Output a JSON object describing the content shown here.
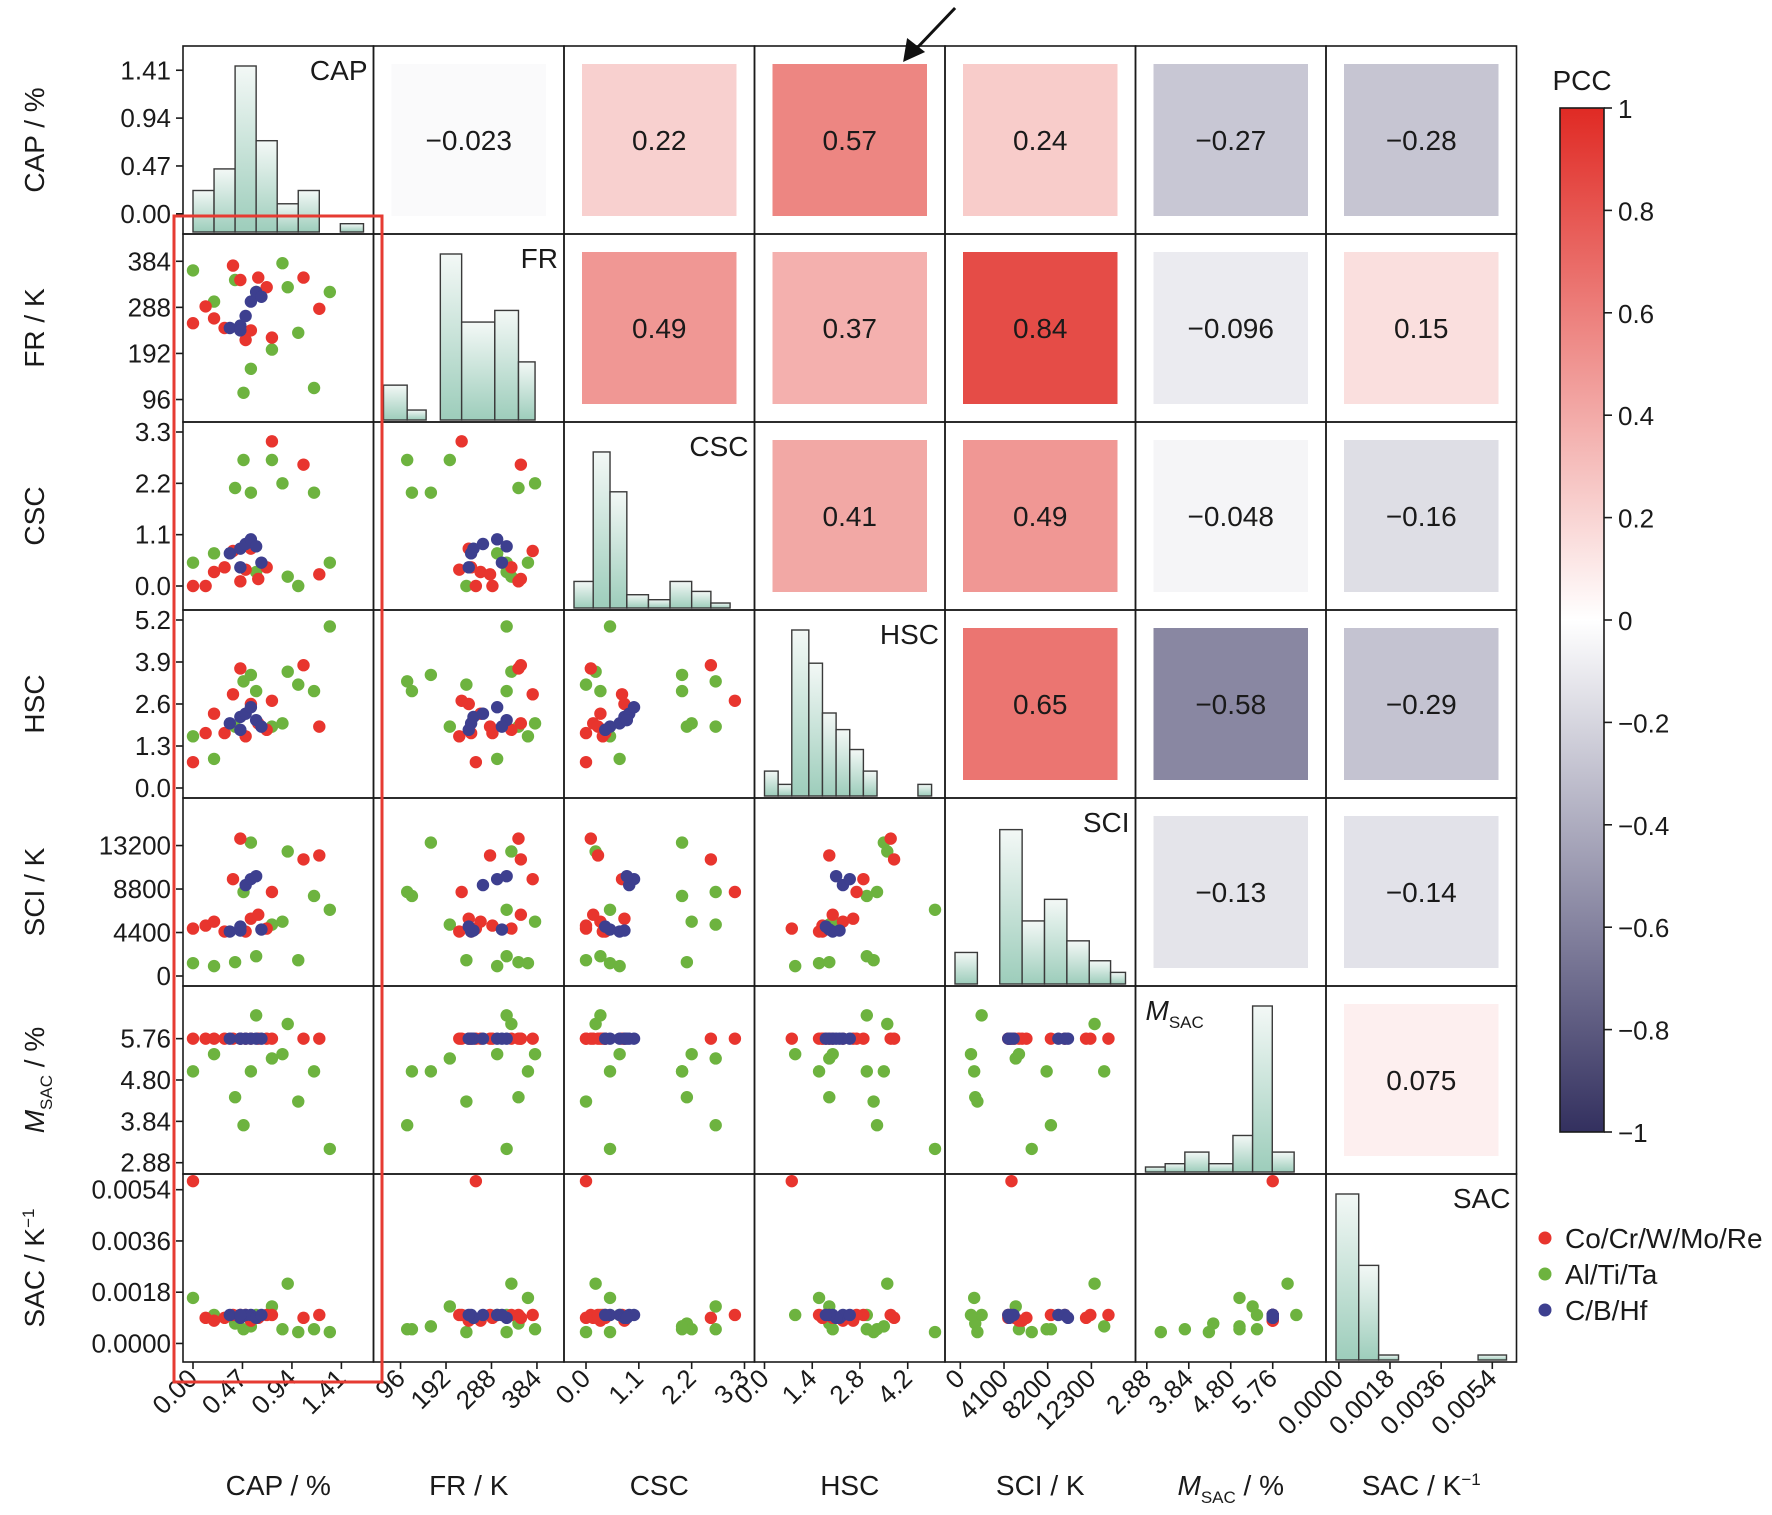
{
  "chart_data": {
    "type": "scatter-matrix",
    "variables": [
      {
        "key": "CAP",
        "name": "CAP",
        "axis_label": "CAP / %",
        "ticks": [
          0.0,
          0.47,
          0.94,
          1.41
        ],
        "tick_labels": [
          "0.00",
          "0.47",
          "0.94",
          "1.41"
        ],
        "x_tick_labels": [
          "0.00",
          "0.47",
          "0.94",
          "1.41"
        ],
        "range": [
          0,
          1.62
        ],
        "y_range": [
          -0.1,
          1.55
        ]
      },
      {
        "key": "FR",
        "name": "FR",
        "axis_label": "FR / K",
        "ticks": [
          96,
          192,
          288,
          384
        ],
        "tick_labels": [
          "96",
          "192",
          "288",
          "384"
        ],
        "x_tick_labels": [
          "96",
          "192",
          "288",
          "384"
        ],
        "range": [
          60,
          420
        ],
        "y_range": [
          70,
          420
        ]
      },
      {
        "key": "CSC",
        "name": "CSC",
        "axis_label": "CSC",
        "ticks": [
          0.0,
          1.1,
          2.2,
          3.3
        ],
        "tick_labels": [
          "0.0",
          "1.1",
          "2.2",
          "3.3"
        ],
        "x_tick_labels": [
          "0.0",
          "1.1",
          "2.2",
          "3.3"
        ],
        "range": [
          -0.25,
          3.3
        ],
        "y_range": [
          -0.3,
          3.3
        ]
      },
      {
        "key": "HSC",
        "name": "HSC",
        "axis_label": "HSC",
        "ticks": [
          0.0,
          1.3,
          2.6,
          3.9,
          5.2
        ],
        "tick_labels": [
          "0.0",
          "1.3",
          "2.6",
          "3.9",
          "5.2"
        ],
        "x_ticks": [
          0.0,
          1.4,
          2.8,
          4.2
        ],
        "x_tick_labels": [
          "0.0",
          "1.4",
          "2.8",
          "4.2"
        ],
        "range": [
          0,
          5.0
        ],
        "y_range": [
          0,
          5.2
        ]
      },
      {
        "key": "SCI",
        "name": "SCI",
        "axis_label": "SCI / K",
        "ticks": [
          0,
          4400,
          8800,
          13200
        ],
        "tick_labels": [
          "0",
          "4400",
          "8800",
          "13200"
        ],
        "x_ticks": [
          0,
          4100,
          8200,
          12300
        ],
        "x_tick_labels": [
          "0",
          "4100",
          "8200",
          "12300"
        ],
        "range": [
          -500,
          15500
        ],
        "y_range": [
          0,
          17000
        ]
      },
      {
        "key": "MSAC",
        "name": "M",
        "name_sub": "SAC",
        "axis_label": "M",
        "axis_label_sub": "SAC",
        "axis_label_suffix": " / %",
        "ticks": [
          2.88,
          3.84,
          4.8,
          5.76
        ],
        "tick_labels": [
          "2.88",
          "3.84",
          "4.80",
          "5.76"
        ],
        "x_tick_labels": [
          "2.88",
          "3.84",
          "4.80",
          "5.76"
        ],
        "range": [
          2.85,
          6.75
        ],
        "y_range": [
          2.85,
          6.75
        ]
      },
      {
        "key": "SAC",
        "name": "SAC",
        "axis_label": "SAC / K",
        "axis_label_sup": "−1",
        "ticks": [
          0.0,
          0.0018,
          0.0036,
          0.0054
        ],
        "tick_labels": [
          "0.0000",
          "0.0018",
          "0.0036",
          "0.0054"
        ],
        "x_tick_labels": [
          "0.0000",
          "0.0018",
          "0.0036",
          "0.0054"
        ],
        "range": [
          -0.0001,
          0.0059
        ],
        "y_range": [
          -0.0003,
          0.0056
        ]
      }
    ],
    "correlations": [
      [
        null,
        -0.023,
        0.22,
        0.57,
        0.24,
        -0.27,
        -0.28
      ],
      [
        null,
        null,
        0.49,
        0.37,
        0.84,
        -0.096,
        0.15
      ],
      [
        null,
        null,
        null,
        0.41,
        0.49,
        -0.048,
        -0.16
      ],
      [
        null,
        null,
        null,
        null,
        0.65,
        -0.58,
        -0.29
      ],
      [
        null,
        null,
        null,
        null,
        null,
        -0.13,
        -0.14
      ],
      [
        null,
        null,
        null,
        null,
        null,
        null,
        0.075
      ],
      [
        null,
        null,
        null,
        null,
        null,
        null,
        null
      ]
    ],
    "correlation_labels": [
      [
        null,
        "−0.023",
        "0.22",
        "0.57",
        "0.24",
        "−0.27",
        "−0.28"
      ],
      [
        null,
        null,
        "0.49",
        "0.37",
        "0.84",
        "−0.096",
        "0.15"
      ],
      [
        null,
        null,
        null,
        "0.41",
        "0.49",
        "−0.048",
        "−0.16"
      ],
      [
        null,
        null,
        null,
        null,
        "0.65",
        "−0.58",
        "−0.29"
      ],
      [
        null,
        null,
        null,
        null,
        null,
        "−0.13",
        "−0.14"
      ],
      [
        null,
        null,
        null,
        null,
        null,
        null,
        "0.075"
      ],
      [
        null,
        null,
        null,
        null,
        null,
        null,
        null
      ]
    ],
    "histograms": [
      {
        "edges": [
          0.0,
          0.2,
          0.4,
          0.6,
          0.8,
          1.0,
          1.2,
          1.4,
          1.62
        ],
        "counts": [
          0.25,
          0.38,
          1.0,
          0.55,
          0.17,
          0.25,
          0.0,
          0.05
        ]
      },
      {
        "edges": [
          60,
          110,
          150,
          180,
          225,
          295,
          345,
          380,
          420
        ],
        "counts": [
          0.21,
          0.06,
          0.0,
          1.0,
          0.59,
          0.66,
          0.35,
          0.0
        ]
      },
      {
        "edges": [
          -0.25,
          0.15,
          0.5,
          0.85,
          1.3,
          1.75,
          2.2,
          2.6,
          3.0
        ],
        "counts": [
          0.16,
          0.94,
          0.7,
          0.08,
          0.05,
          0.16,
          0.1,
          0.03
        ]
      },
      {
        "edges": [
          0.0,
          0.4,
          0.8,
          1.3,
          1.7,
          2.1,
          2.5,
          2.9,
          3.3,
          4.5,
          4.9
        ],
        "counts": [
          0.15,
          0.07,
          1.0,
          0.8,
          0.5,
          0.4,
          0.28,
          0.15,
          0.0,
          0.07
        ]
      },
      {
        "edges": [
          -500,
          1600,
          3700,
          5800,
          7900,
          10000,
          12100,
          14100,
          15500
        ],
        "counts": [
          0.19,
          0.0,
          0.93,
          0.38,
          0.51,
          0.26,
          0.14,
          0.07
        ]
      },
      {
        "edges": [
          2.85,
          3.3,
          3.75,
          4.3,
          4.85,
          5.3,
          5.75,
          6.25,
          6.75
        ],
        "counts": [
          0.03,
          0.05,
          0.12,
          0.05,
          0.22,
          1.0,
          0.12,
          0.0
        ]
      },
      {
        "edges": [
          -0.0001,
          0.0007,
          0.0014,
          0.0021,
          0.0028,
          0.0035,
          0.0042,
          0.0049,
          0.0059
        ],
        "counts": [
          1.0,
          0.57,
          0.03,
          0.0,
          0.0,
          0.0,
          0.0,
          0.03
        ]
      }
    ],
    "groups": [
      {
        "name": "Co/Cr/W/Mo/Re",
        "color": "#e8352e"
      },
      {
        "name": "Al/Ti/Ta",
        "color": "#6db33f"
      },
      {
        "name": "C/B/Hf",
        "color": "#3d3f8f"
      }
    ],
    "points": {
      "columns": [
        "CAP",
        "FR",
        "CSC",
        "HSC",
        "SCI",
        "MSAC",
        "SAC"
      ],
      "group0": [
        [
          0.0,
          255,
          0.0,
          0.8,
          4800,
          5.76,
          0.0057
        ],
        [
          0.12,
          290,
          0.0,
          1.7,
          5100,
          5.76,
          0.0009
        ],
        [
          0.2,
          265,
          0.3,
          2.3,
          5500,
          5.76,
          0.0008
        ],
        [
          0.3,
          245,
          0.4,
          1.7,
          4500,
          5.76,
          0.0009
        ],
        [
          0.38,
          375,
          0.75,
          2.9,
          9800,
          5.76,
          0.001
        ],
        [
          0.45,
          345,
          0.1,
          3.7,
          13900,
          5.76,
          0.001
        ],
        [
          0.5,
          220,
          0.35,
          1.6,
          4500,
          5.76,
          0.001
        ],
        [
          0.55,
          240,
          0.8,
          2.6,
          5800,
          5.76,
          0.0008
        ],
        [
          0.62,
          350,
          0.15,
          2.0,
          6200,
          5.76,
          0.0009
        ],
        [
          0.7,
          330,
          0.4,
          1.8,
          4800,
          5.76,
          0.001
        ],
        [
          0.75,
          225,
          3.1,
          2.7,
          8500,
          5.76,
          0.001
        ],
        [
          1.05,
          350,
          2.6,
          3.8,
          11800,
          5.76,
          0.0009
        ],
        [
          1.2,
          285,
          0.25,
          1.9,
          12200,
          5.76,
          0.001
        ]
      ],
      "group1": [
        [
          0.0,
          365,
          0.5,
          1.6,
          1300,
          5.0,
          0.0016
        ],
        [
          0.4,
          345,
          2.1,
          1.9,
          1400,
          4.4,
          0.0007
        ],
        [
          0.48,
          110,
          2.7,
          3.3,
          8500,
          3.75,
          0.0005
        ],
        [
          0.55,
          160,
          2.0,
          3.5,
          13500,
          5.0,
          0.0006
        ],
        [
          0.6,
          320,
          0.3,
          3.0,
          2000,
          6.3,
          0.001
        ],
        [
          0.75,
          200,
          2.7,
          1.9,
          5200,
          5.3,
          0.0013
        ],
        [
          0.85,
          380,
          2.2,
          2.0,
          5500,
          5.4,
          0.0005
        ],
        [
          1.0,
          235,
          0.0,
          3.2,
          1600,
          4.3,
          0.0004
        ],
        [
          1.15,
          120,
          2.0,
          3.0,
          8100,
          5.0,
          0.0005
        ],
        [
          1.3,
          320,
          0.5,
          5.0,
          6700,
          3.2,
          0.0004
        ],
        [
          0.9,
          330,
          0.2,
          3.6,
          12600,
          6.1,
          0.0021
        ],
        [
          0.2,
          300,
          0.7,
          0.9,
          1000,
          5.4,
          0.001
        ]
      ],
      "group2": [
        [
          0.35,
          245,
          0.7,
          2.0,
          4500,
          5.76,
          0.001
        ],
        [
          0.45,
          250,
          0.8,
          2.2,
          4600,
          5.76,
          0.0009
        ],
        [
          0.5,
          270,
          0.9,
          2.3,
          9200,
          5.76,
          0.001
        ],
        [
          0.55,
          300,
          1.0,
          2.5,
          9800,
          5.76,
          0.001
        ],
        [
          0.6,
          320,
          0.85,
          2.1,
          10100,
          5.76,
          0.0009
        ],
        [
          0.65,
          310,
          0.5,
          1.9,
          4700,
          5.76,
          0.001
        ],
        [
          0.45,
          240,
          0.4,
          1.8,
          5000,
          5.76,
          0.001
        ]
      ]
    },
    "colorbar": {
      "title": "PCC",
      "range": [
        -1,
        1
      ],
      "ticks": [
        1,
        0.8,
        0.6,
        0.4,
        0.2,
        0,
        -0.2,
        -0.4,
        -0.6,
        -0.8,
        -1
      ],
      "tick_labels": [
        "1",
        "0.8",
        "0.6",
        "0.4",
        "0.2",
        "0",
        "−0.2",
        "−0.4",
        "−0.6",
        "−0.8",
        "−1"
      ],
      "colors": {
        "neg": "#33305f",
        "mid": "#ffffff",
        "pos": "#e02a24"
      }
    },
    "annotations": {
      "highlight_column": "CAP",
      "highlight_color": "#e63b32",
      "arrow_target": "CAP-HSC"
    },
    "legend_placement": "bottom-right"
  }
}
